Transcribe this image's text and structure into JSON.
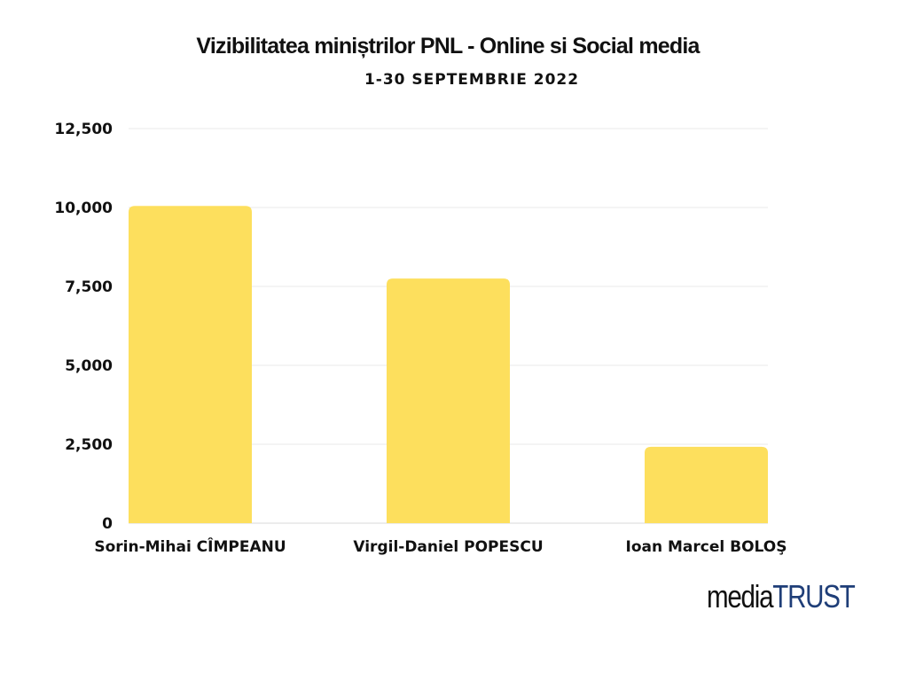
{
  "chart_data": {
    "type": "bar",
    "title": "Vizibilitatea miniștrilor PNL - Online si Social media",
    "subtitle": "1-30 SEPTEMBRIE 2022",
    "categories": [
      "Sorin-Mihai CÎMPEANU",
      "Virgil-Daniel POPESCU",
      "Ioan Marcel BOLOŞ"
    ],
    "values": [
      10050,
      7750,
      2420
    ],
    "ylim": [
      0,
      12500
    ],
    "yticks": [
      0,
      2500,
      5000,
      7500,
      10000,
      12500
    ],
    "ytick_labels": [
      "0",
      "2,500",
      "5,000",
      "7,500",
      "10,000",
      "12,500"
    ],
    "xlabel": "",
    "ylabel": "",
    "grid": true,
    "legend": "none",
    "bar_color": "#fddf5d",
    "grid_color": "#e8e8e8"
  },
  "logo": {
    "part1": "media",
    "part2": "TRUST",
    "color1": "#111111",
    "color2": "#1f3e78"
  }
}
